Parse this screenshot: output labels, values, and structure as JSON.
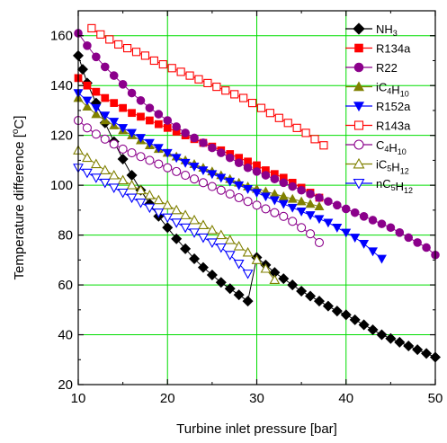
{
  "chart_data": {
    "type": "line",
    "title": "",
    "xlabel": "Turbine inlet pressure [bar]",
    "ylabel": {
      "pre": "Temperature difference [",
      "sup": "o",
      "post": "C]"
    },
    "xlim": [
      10,
      50
    ],
    "ylim": [
      20,
      170
    ],
    "xticks": [
      10,
      20,
      30,
      40,
      50
    ],
    "yticks": [
      20,
      40,
      60,
      80,
      100,
      120,
      140,
      160
    ],
    "grid": true,
    "grid_color": "#00dd00",
    "legend_position": "top-right",
    "series": [
      {
        "name": [
          {
            "t": "NH",
            "s": ""
          },
          {
            "t": "3",
            "s": "sub"
          }
        ],
        "color": "#000000",
        "marker": "diamond",
        "filled": true,
        "x": [
          10,
          10.5,
          11,
          12,
          13,
          14,
          15,
          16,
          17,
          18,
          19,
          20,
          21,
          22,
          23,
          24,
          25,
          26,
          27,
          28,
          29,
          30,
          31,
          32,
          33,
          34,
          35,
          36,
          37,
          38,
          39,
          40,
          41,
          42,
          43,
          44,
          45,
          46,
          47,
          48,
          49,
          50
        ],
        "y": [
          152,
          146.5,
          141,
          133,
          125,
          117.5,
          110.5,
          104,
          98,
          92.5,
          87.5,
          83,
          78.5,
          74.5,
          70.5,
          67,
          64,
          61,
          58.5,
          56,
          53.5,
          71,
          68,
          65,
          62.5,
          60,
          57.5,
          55.5,
          53.5,
          51.5,
          49.5,
          48,
          46,
          44,
          42,
          40,
          38.5,
          37,
          35.5,
          34,
          32.5,
          31
        ]
      },
      {
        "name": [
          {
            "t": "R134a",
            "s": ""
          }
        ],
        "color": "#ff0000",
        "marker": "square",
        "filled": true,
        "x": [
          10,
          11,
          12,
          13,
          14,
          15,
          16,
          17,
          18,
          19,
          20,
          21,
          22,
          23,
          24,
          25,
          26,
          27,
          28,
          29,
          30,
          31,
          32,
          33,
          34,
          35,
          36,
          37
        ],
        "y": [
          143,
          140,
          137.5,
          135,
          133,
          131,
          129,
          127.5,
          126,
          124.5,
          123,
          121.5,
          120,
          118.5,
          117,
          115.5,
          114,
          112.5,
          111,
          109.5,
          108,
          106,
          104.5,
          103,
          101,
          99,
          97,
          95
        ]
      },
      {
        "name": [
          {
            "t": "R22",
            "s": ""
          }
        ],
        "color": "#8b008b",
        "marker": "circle",
        "filled": true,
        "x": [
          10,
          11,
          12,
          13,
          14,
          15,
          16,
          17,
          18,
          19,
          20,
          21,
          22,
          23,
          24,
          25,
          26,
          27,
          28,
          29,
          30,
          31,
          32,
          33,
          34,
          35,
          36,
          37,
          38,
          39,
          40,
          41,
          42,
          43,
          44,
          45,
          46,
          47,
          48,
          49,
          50
        ],
        "y": [
          161,
          156,
          151.5,
          147.5,
          144,
          140.5,
          137,
          134,
          131,
          128.5,
          126,
          123.5,
          121,
          119,
          117,
          115,
          113,
          111,
          109,
          107,
          105.5,
          104,
          102.5,
          101,
          99.5,
          98,
          96.5,
          95,
          93.5,
          92,
          90.5,
          89,
          87.5,
          86,
          84.5,
          83,
          81,
          79,
          77,
          75,
          72
        ]
      },
      {
        "name": [
          {
            "t": "iC",
            "s": ""
          },
          {
            "t": "4",
            "s": "sub"
          },
          {
            "t": "H",
            "s": ""
          },
          {
            "t": "10",
            "s": "sub"
          }
        ],
        "color": "#808000",
        "marker": "triangle-up",
        "filled": true,
        "x": [
          10,
          11,
          12,
          13,
          14,
          15,
          16,
          17,
          18,
          19,
          20,
          21,
          22,
          23,
          24,
          25,
          26,
          27,
          28,
          29,
          30,
          31,
          32,
          33,
          34,
          35,
          36,
          37
        ],
        "y": [
          135,
          131.5,
          128.5,
          126,
          124,
          122,
          120,
          118,
          116,
          114.5,
          113,
          111.5,
          110,
          108.5,
          107,
          105.5,
          104,
          102.5,
          101,
          99.5,
          98.5,
          97.5,
          96.5,
          95.5,
          94.5,
          93.5,
          92.5,
          91.5
        ]
      },
      {
        "name": [
          {
            "t": "R152a",
            "s": ""
          }
        ],
        "color": "#0000ff",
        "marker": "triangle-down",
        "filled": true,
        "x": [
          10,
          11,
          12,
          13,
          14,
          15,
          16,
          17,
          18,
          19,
          20,
          21,
          22,
          23,
          24,
          25,
          26,
          27,
          28,
          29,
          30,
          31,
          32,
          33,
          34,
          35,
          36,
          37,
          38,
          39,
          40,
          41,
          42,
          43,
          44
        ],
        "y": [
          137,
          134,
          131,
          128,
          125.5,
          123,
          121,
          119,
          117,
          115,
          113,
          111,
          109,
          107.5,
          106,
          104.5,
          103,
          101.5,
          100,
          98.5,
          97,
          95.5,
          94,
          92.5,
          91,
          89.5,
          88,
          86.5,
          85,
          83,
          81,
          79,
          76.5,
          73.5,
          70.5
        ]
      },
      {
        "name": [
          {
            "t": "R143a",
            "s": ""
          }
        ],
        "color": "#ff0000",
        "marker": "square",
        "filled": false,
        "x": [
          11.5,
          12.5,
          13.5,
          14.5,
          15.5,
          16.5,
          17.5,
          18.5,
          19.5,
          20.5,
          21.5,
          22.5,
          23.5,
          24.5,
          25.5,
          26.5,
          27.5,
          28.5,
          29.5,
          30.5,
          31.5,
          32.5,
          33.5,
          34.5,
          35.5,
          36.5,
          37.5
        ],
        "y": [
          163,
          160.5,
          158.5,
          156.5,
          155,
          153.5,
          152,
          150,
          148.5,
          147,
          145.5,
          144,
          142.5,
          141,
          139.5,
          138,
          136.5,
          135,
          133,
          131,
          129,
          127,
          125,
          123,
          121,
          118.5,
          116
        ]
      },
      {
        "name": [
          {
            "t": "C",
            "s": ""
          },
          {
            "t": "4",
            "s": "sub"
          },
          {
            "t": "H",
            "s": ""
          },
          {
            "t": "10",
            "s": "sub"
          }
        ],
        "color": "#8b008b",
        "marker": "circle",
        "filled": false,
        "x": [
          10,
          11,
          12,
          13,
          14,
          15,
          16,
          17,
          18,
          19,
          20,
          21,
          22,
          23,
          24,
          25,
          26,
          27,
          28,
          29,
          30,
          31,
          32,
          33,
          34,
          35,
          36,
          37
        ],
        "y": [
          126,
          123,
          120.5,
          118.5,
          116.5,
          114.5,
          113,
          111.5,
          110,
          108.5,
          107,
          105.5,
          104,
          102.5,
          101,
          99.5,
          98,
          96.5,
          95,
          93.5,
          92,
          90.5,
          89,
          87.5,
          85.5,
          83,
          80.5,
          77
        ]
      },
      {
        "name": [
          {
            "t": "iC",
            "s": ""
          },
          {
            "t": "5",
            "s": "sub"
          },
          {
            "t": "H",
            "s": ""
          },
          {
            "t": "12",
            "s": "sub"
          }
        ],
        "color": "#808000",
        "marker": "triangle-up",
        "filled": false,
        "x": [
          10,
          11,
          12,
          13,
          14,
          15,
          16,
          17,
          18,
          19,
          20,
          21,
          22,
          23,
          24,
          25,
          26,
          27,
          28,
          29,
          30,
          31,
          32
        ],
        "y": [
          114,
          111,
          108.5,
          106,
          104,
          102,
          100,
          98,
          96,
          94,
          92,
          90,
          88,
          86,
          84,
          82,
          80,
          78,
          75.5,
          73,
          70,
          66.5,
          62
        ]
      },
      {
        "name": [
          {
            "t": "nC",
            "s": ""
          },
          {
            "t": "5",
            "s": "sub"
          },
          {
            "t": "H",
            "s": ""
          },
          {
            "t": "12",
            "s": "sub"
          }
        ],
        "color": "#0000ff",
        "marker": "triangle-down",
        "filled": false,
        "x": [
          10,
          11,
          12,
          13,
          14,
          15,
          16,
          17,
          18,
          19,
          20,
          21,
          22,
          23,
          24,
          25,
          26,
          27,
          28,
          29
        ],
        "y": [
          107,
          105,
          103,
          101,
          99,
          97,
          95,
          93,
          91,
          89,
          87,
          85,
          83,
          81,
          79,
          77,
          75,
          72,
          68.5,
          64.5
        ]
      }
    ]
  }
}
